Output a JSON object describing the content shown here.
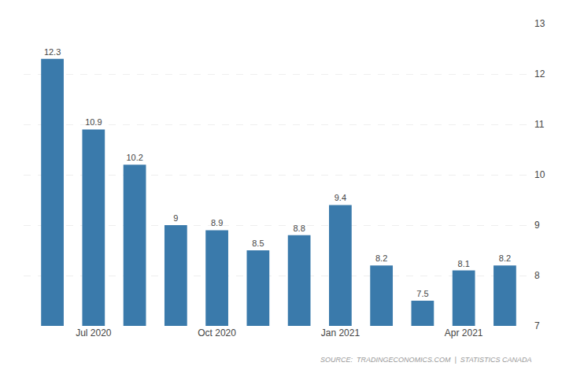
{
  "chart_data": {
    "type": "bar",
    "categories": [
      null,
      "Jul 2020",
      null,
      null,
      "Oct 2020",
      null,
      null,
      "Jan 2021",
      null,
      null,
      "Apr 2021",
      null
    ],
    "values": [
      12.3,
      10.9,
      10.2,
      9.0,
      8.9,
      8.5,
      8.8,
      9.4,
      8.2,
      7.5,
      8.1,
      8.2
    ],
    "color": "#3a7aab",
    "ylim": [
      7,
      13
    ],
    "yticks": [
      7,
      8,
      9,
      10,
      11,
      12,
      13
    ],
    "grid": true,
    "data_labels": true,
    "annotations": [
      "SOURCE:  TRADINGECONOMICS.COM  |  STATISTICS CANADA"
    ]
  }
}
